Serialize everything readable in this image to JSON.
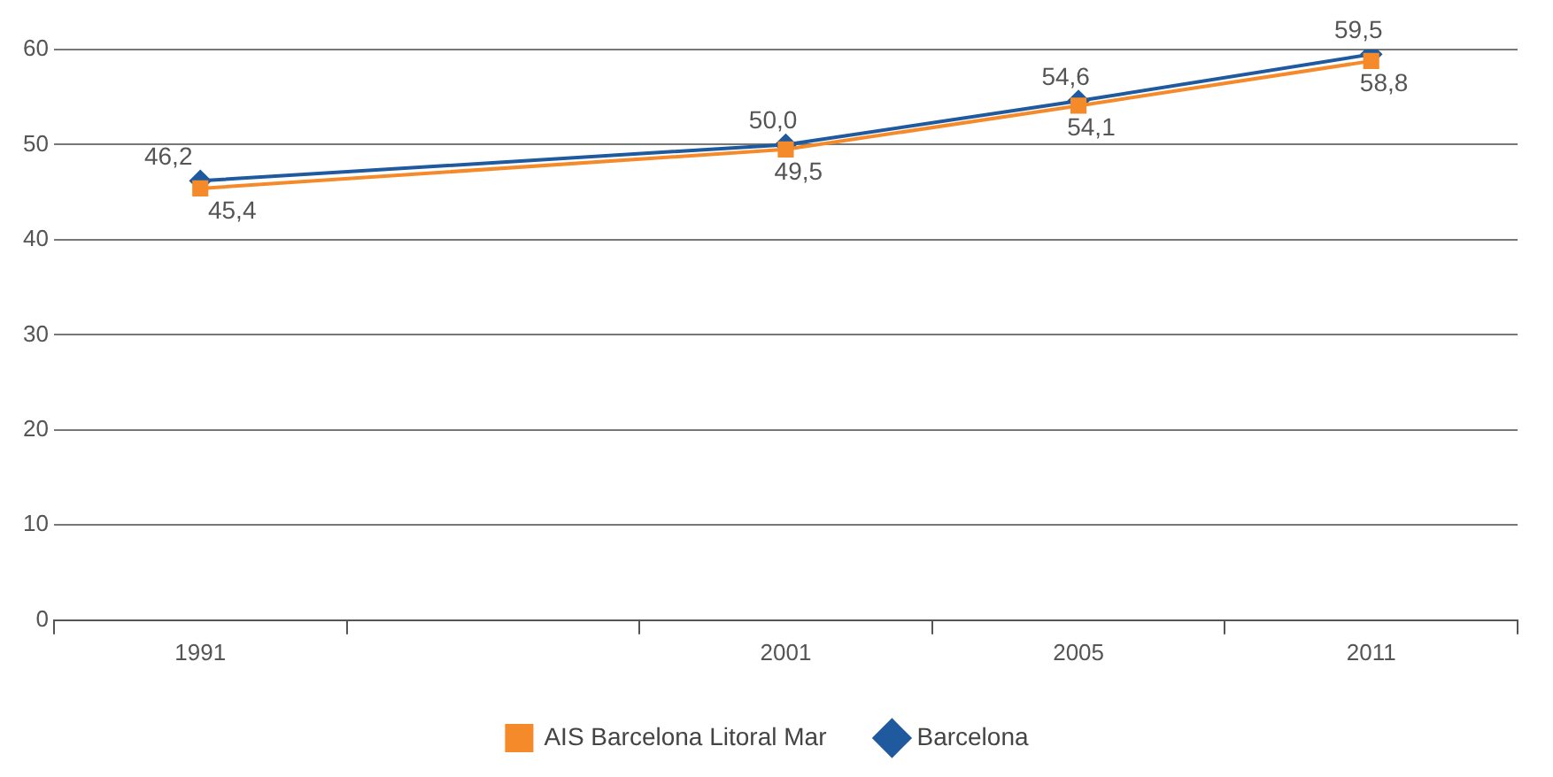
{
  "chart_data": {
    "type": "line",
    "categories": [
      "1991",
      null,
      "2001",
      "2005",
      "2011"
    ],
    "series": [
      {
        "name": "AIS Barcelona Litoral Mar",
        "color": "#f58a2a",
        "marker": "square",
        "values": [
          45.4,
          null,
          49.5,
          54.1,
          58.8
        ],
        "value_labels": [
          "45,4",
          null,
          "49,5",
          "54,1",
          "58,8"
        ]
      },
      {
        "name": "Barcelona",
        "color": "#1f5a9e",
        "marker": "diamond",
        "values": [
          46.2,
          null,
          50.0,
          54.6,
          59.5
        ],
        "value_labels": [
          "46,2",
          null,
          "50,0",
          "54,6",
          "59,5"
        ]
      }
    ],
    "ylim": [
      0,
      60
    ],
    "yticks": [
      0,
      10,
      20,
      30,
      40,
      50,
      60
    ],
    "grid": "y",
    "legend": "bottom",
    "line_style": "solid"
  }
}
